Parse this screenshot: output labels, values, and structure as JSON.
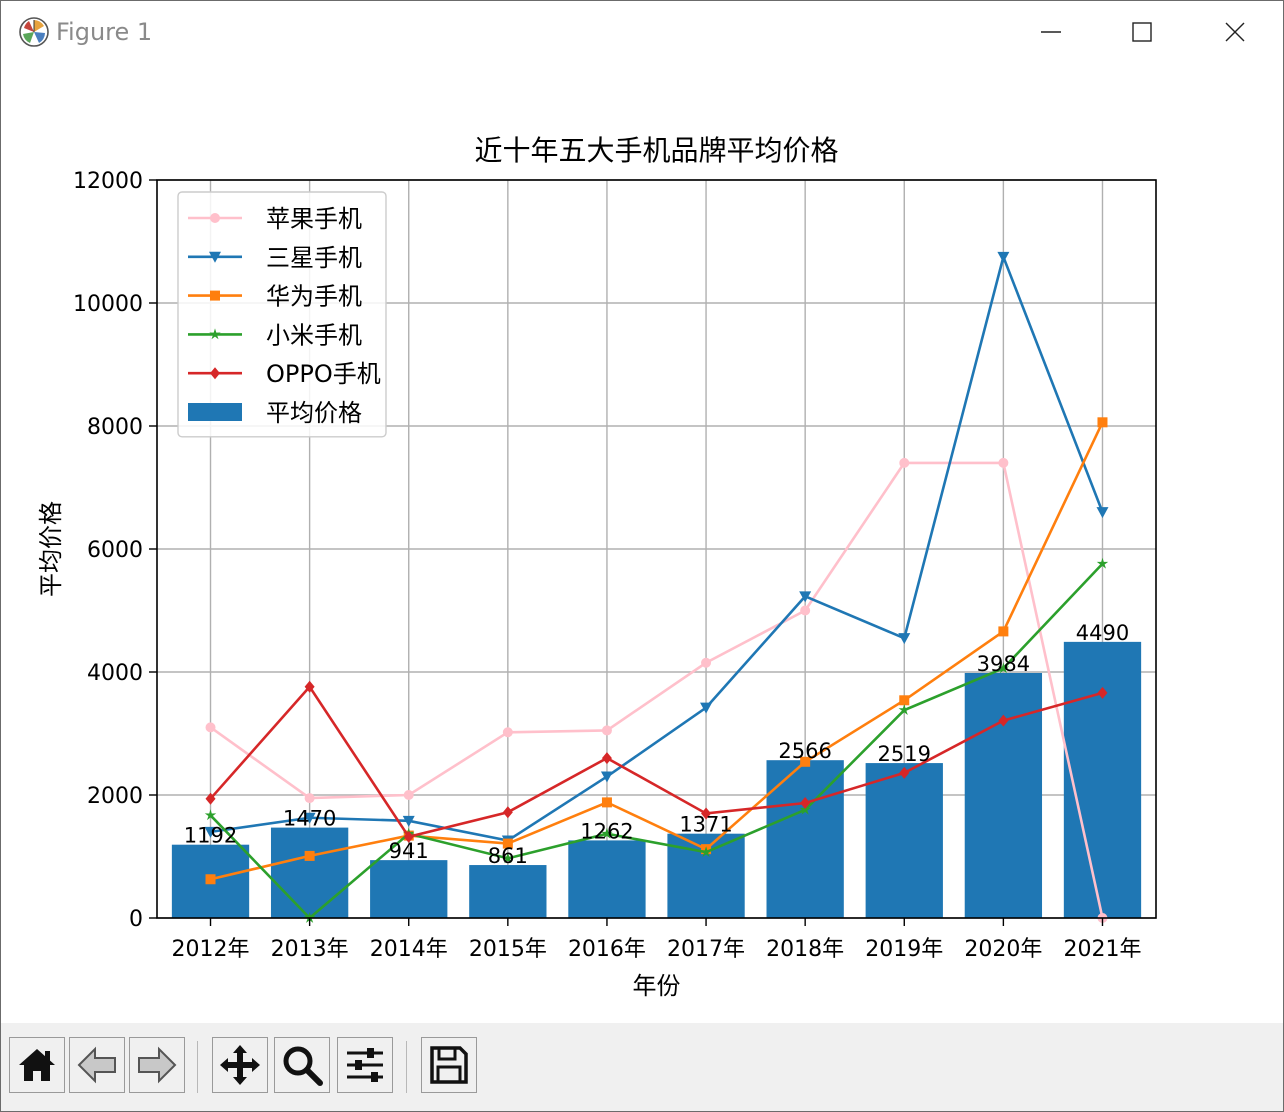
{
  "window": {
    "title": "Figure 1",
    "controls": [
      "minimize",
      "maximize",
      "close"
    ]
  },
  "toolbar": {
    "buttons": [
      {
        "name": "home-button",
        "icon": "home-icon"
      },
      {
        "name": "back-button",
        "icon": "back-arrow-icon"
      },
      {
        "name": "forward-button",
        "icon": "forward-arrow-icon"
      },
      {
        "name": "pan-button",
        "icon": "move-icon"
      },
      {
        "name": "zoom-button",
        "icon": "magnifier-icon"
      },
      {
        "name": "configure-subplots-button",
        "icon": "sliders-icon"
      },
      {
        "name": "save-button",
        "icon": "floppy-disk-icon"
      }
    ]
  },
  "chart_data": {
    "type": "bar",
    "title": "近十年五大手机品牌平均价格",
    "xlabel": "年份",
    "ylabel": "平均价格",
    "categories": [
      "2012年",
      "2013年",
      "2014年",
      "2015年",
      "2016年",
      "2017年",
      "2018年",
      "2019年",
      "2020年",
      "2021年"
    ],
    "ylim": [
      0,
      12000
    ],
    "yticks": [
      "0",
      "2000",
      "4000",
      "6000",
      "8000",
      "10000",
      "12000"
    ],
    "grid": true,
    "legend_position": "upper-left",
    "bar_series": {
      "name": "平均价格",
      "color": "#1f77b4",
      "values": [
        1192,
        1470,
        941,
        861,
        1262,
        1371,
        2566,
        2519,
        3984,
        4490
      ],
      "labels": [
        "1192",
        "1470",
        "941",
        "861",
        "1262",
        "1371",
        "2566",
        "2519",
        "3984",
        "4490"
      ]
    },
    "series": [
      {
        "name": "苹果手机",
        "color": "#ffc0cb",
        "marker": "circle",
        "values": [
          3100,
          1950,
          2000,
          3020,
          3050,
          4150,
          5000,
          7400,
          7400,
          0
        ]
      },
      {
        "name": "三星手机",
        "color": "#1f77b4",
        "marker": "triangle-down",
        "values": [
          1400,
          1630,
          1580,
          1260,
          2300,
          3420,
          5230,
          4550,
          10750,
          6600
        ]
      },
      {
        "name": "华为手机",
        "color": "#ff7f0e",
        "marker": "square",
        "values": [
          630,
          1010,
          1340,
          1210,
          1880,
          1120,
          2540,
          3540,
          4660,
          8060
        ]
      },
      {
        "name": "小米手机",
        "color": "#2ca02c",
        "marker": "star",
        "values": [
          1670,
          0,
          1370,
          970,
          1370,
          1070,
          1760,
          3380,
          4060,
          5760
        ]
      },
      {
        "name": "OPPO手机",
        "color": "#d62728",
        "marker": "diamond",
        "values": [
          1940,
          3760,
          1320,
          1720,
          2600,
          1700,
          1870,
          2360,
          3210,
          3660
        ]
      }
    ]
  }
}
